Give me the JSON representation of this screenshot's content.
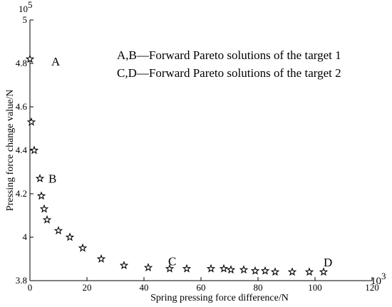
{
  "chart_data": {
    "type": "scatter",
    "xlabel": "Spring pressing force difference/N",
    "ylabel": "Pressing force change value/N",
    "xlim": [
      0,
      120
    ],
    "ylim": [
      3.8,
      5.0
    ],
    "x_ticks": [
      "0",
      "20",
      "40",
      "60",
      "80",
      "100",
      "120"
    ],
    "y_ticks": [
      "3.8",
      "4",
      "4.2",
      "4.4",
      "4.6",
      "4.8",
      "5"
    ],
    "x_multiplier": "10",
    "x_multiplier_exp": "3",
    "y_multiplier": "10",
    "y_multiplier_exp": "5",
    "grid": false,
    "marker": "star",
    "series": [
      {
        "x": [
          0,
          0.5,
          1.5,
          3.5,
          4,
          5,
          6,
          10,
          14,
          18.5,
          25,
          33,
          41.5,
          49,
          55,
          63.5,
          68,
          70.5,
          75,
          79,
          82.5,
          86,
          92,
          98,
          103
        ],
        "y": [
          4.82,
          4.53,
          4.4,
          4.27,
          4.19,
          4.13,
          4.08,
          4.03,
          4.0,
          3.95,
          3.9,
          3.87,
          3.86,
          3.855,
          3.855,
          3.855,
          3.855,
          3.85,
          3.85,
          3.845,
          3.845,
          3.84,
          3.84,
          3.84,
          3.84
        ]
      }
    ],
    "annotations": [
      {
        "text": "A",
        "x": 7.5,
        "y": 4.81
      },
      {
        "text": "B",
        "x": 6.5,
        "y": 4.27
      },
      {
        "text": "C",
        "x": 48.5,
        "y": 3.89
      },
      {
        "text": "D",
        "x": 103,
        "y": 3.885
      }
    ],
    "legend_lines": [
      "A,B—Forward Pareto solutions of the target 1",
      "C,D—Forward Pareto solutions of the target 2"
    ]
  }
}
